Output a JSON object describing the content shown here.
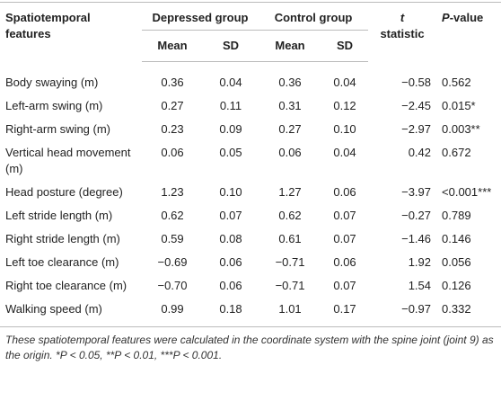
{
  "table": {
    "header": {
      "feature": "Spatiotemporal features",
      "depressed": "Depressed group",
      "control": "Control group",
      "t": "t",
      "t_rest": "statistic",
      "p": "P",
      "p_rest": "-value",
      "sub": [
        "Mean",
        "SD",
        "Mean",
        "SD"
      ]
    },
    "rows": [
      [
        "Body swaying (m)",
        "0.36",
        "0.04",
        "0.36",
        "0.04",
        "−0.58",
        "0.562"
      ],
      [
        "Left-arm swing (m)",
        "0.27",
        "0.11",
        "0.31",
        "0.12",
        "−2.45",
        "0.015*"
      ],
      [
        "Right-arm swing (m)",
        "0.23",
        "0.09",
        "0.27",
        "0.10",
        "−2.97",
        "0.003**"
      ],
      [
        "Vertical head movement (m)",
        "0.06",
        "0.05",
        "0.06",
        "0.04",
        "0.42",
        "0.672"
      ],
      [
        "Head posture (degree)",
        "1.23",
        "0.10",
        "1.27",
        "0.06",
        "−3.97",
        "<0.001***"
      ],
      [
        "Left stride length (m)",
        "0.62",
        "0.07",
        "0.62",
        "0.07",
        "−0.27",
        "0.789"
      ],
      [
        "Right stride length (m)",
        "0.59",
        "0.08",
        "0.61",
        "0.07",
        "−1.46",
        "0.146"
      ],
      [
        "Left toe clearance (m)",
        "−0.69",
        "0.06",
        "−0.71",
        "0.06",
        "1.92",
        "0.056"
      ],
      [
        "Right toe clearance (m)",
        "−0.70",
        "0.06",
        "−0.71",
        "0.07",
        "1.54",
        "0.126"
      ],
      [
        "Walking speed (m)",
        "0.99",
        "0.18",
        "1.01",
        "0.17",
        "−0.97",
        "0.332"
      ]
    ],
    "footnote": "These spatiotemporal features were calculated in the coordinate system with the spine joint (joint 9) as the origin. *P < 0.05, **P < 0.01, ***P < 0.001."
  }
}
